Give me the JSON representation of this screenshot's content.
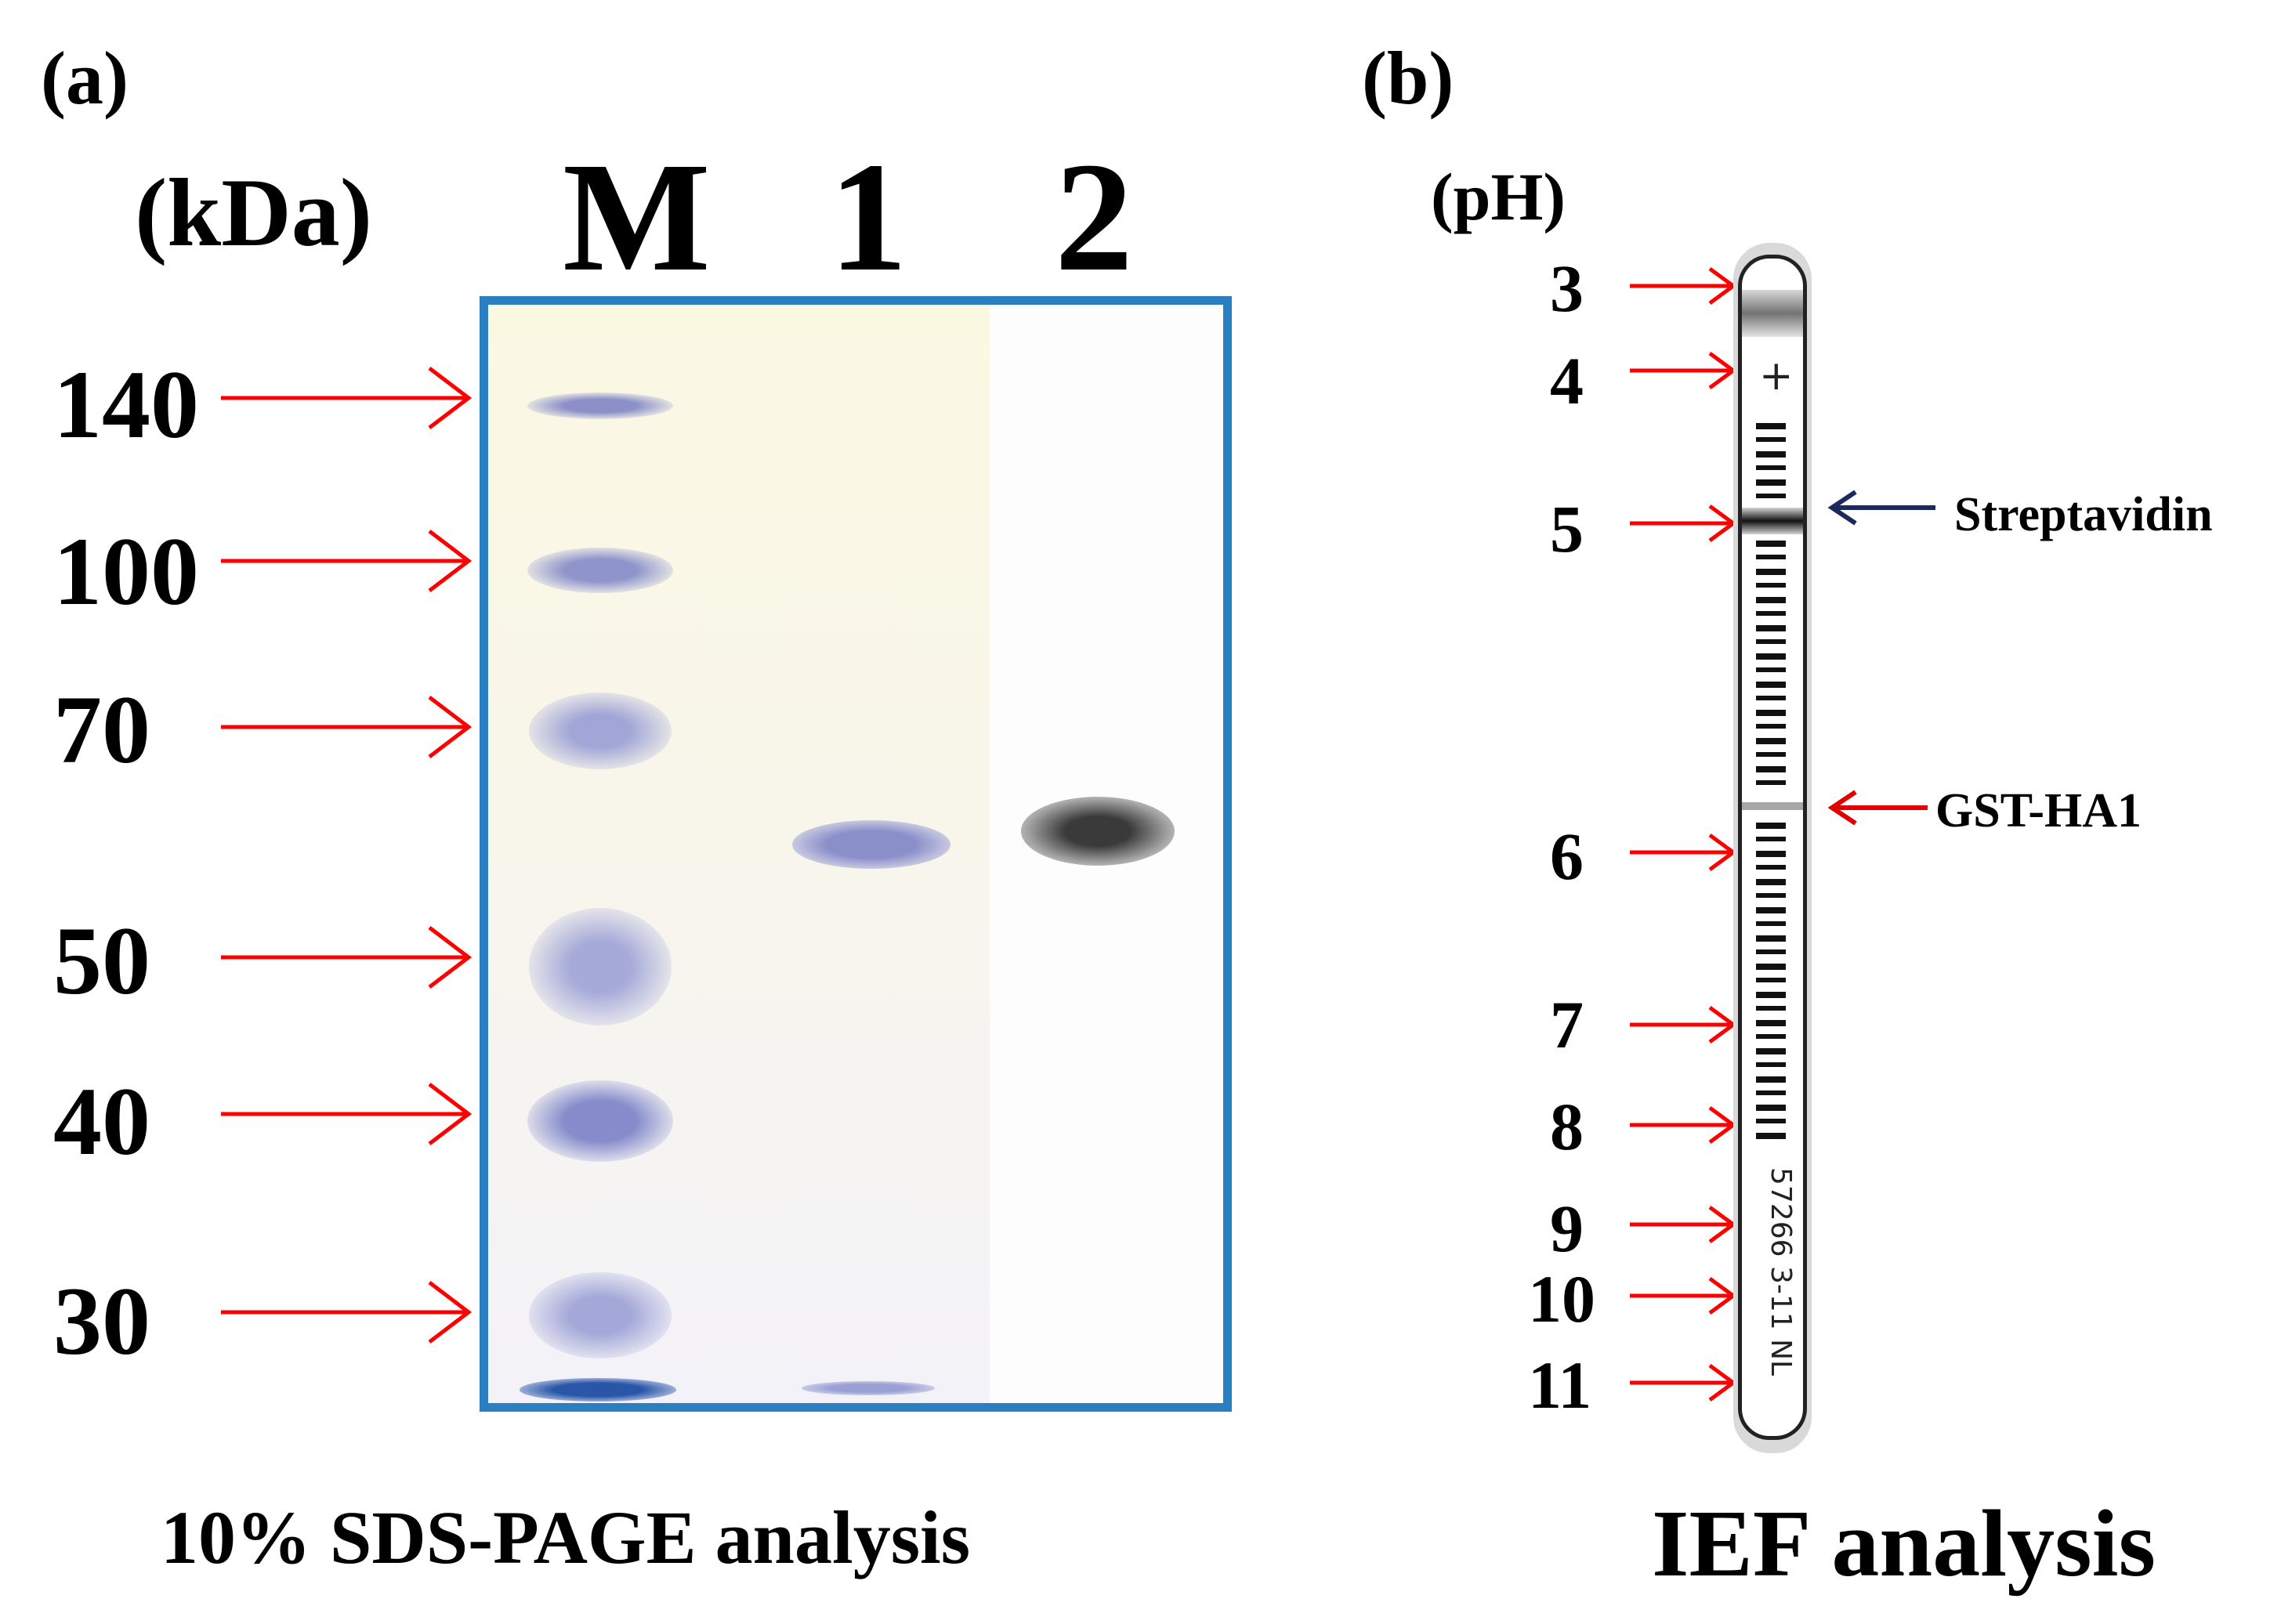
{
  "panel_a": {
    "letter": "(a)",
    "unit": "(kDa)",
    "lanes": [
      "M",
      "1",
      "2"
    ],
    "markers": [
      "140",
      "100",
      "70",
      "50",
      "40",
      "30"
    ],
    "caption": "10% SDS-PAGE analysis",
    "frame_color": "#2a7fc1",
    "arrow_color": "#ff0000"
  },
  "panel_b": {
    "letter": "(b)",
    "unit": "(pH)",
    "ph_values": [
      "3",
      "4",
      "5",
      "6",
      "7",
      "8",
      "9",
      "10",
      "11"
    ],
    "annotations": {
      "streptavidin": "Streptavidin",
      "gst_ha1": "GST-HA1"
    },
    "strip_symbol": "+",
    "strip_text": "57266   3-11 NL",
    "caption": "IEF analysis",
    "streptavidin_arrow_color": "#1a2a5a",
    "gst_arrow_color": "#e00000"
  }
}
